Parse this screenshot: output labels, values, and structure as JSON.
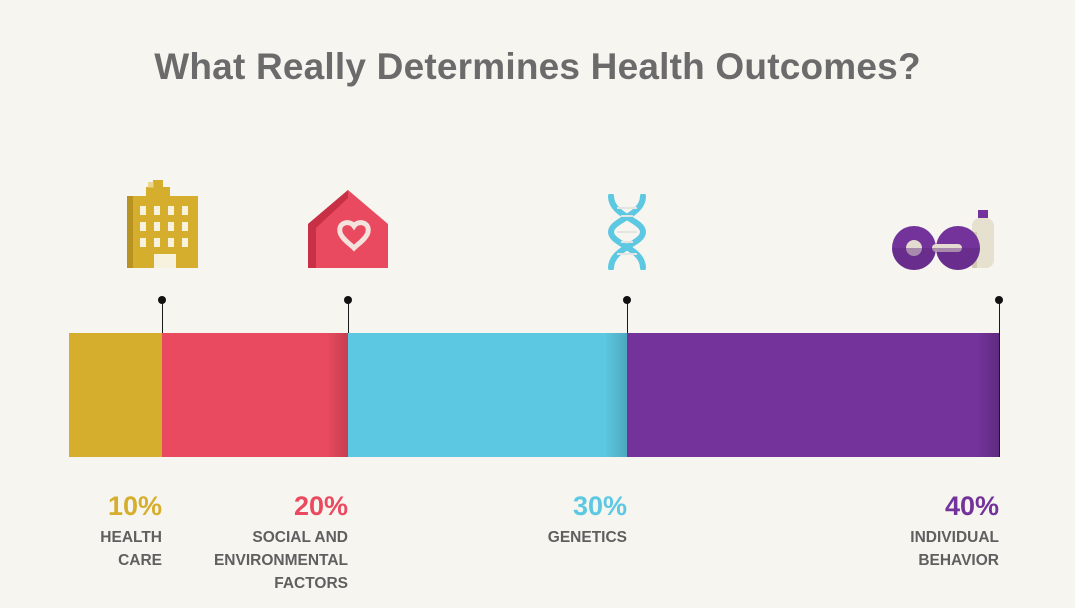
{
  "title": "What Really Determines Health Outcomes?",
  "chart_data": {
    "type": "bar",
    "orientation": "horizontal-stacked",
    "categories": [
      "HEALTH CARE",
      "SOCIAL AND ENVIRONMENTAL FACTORS",
      "GENETICS",
      "INDIVIDUAL BEHAVIOR"
    ],
    "values": [
      10,
      20,
      30,
      40
    ],
    "value_labels": [
      "10%",
      "20%",
      "30%",
      "40%"
    ],
    "label_lines": [
      [
        "HEALTH",
        "CARE"
      ],
      [
        "SOCIAL AND",
        "ENVIRONMENTAL",
        "FACTORS"
      ],
      [
        "GENETICS"
      ],
      [
        "INDIVIDUAL",
        "BEHAVIOR"
      ]
    ],
    "colors": [
      "#d5ae2e",
      "#ea4a5f",
      "#5cc8e2",
      "#73339a"
    ],
    "icons": [
      "hospital-icon",
      "house-heart-icon",
      "dna-icon",
      "weights-bottle-icon"
    ]
  }
}
